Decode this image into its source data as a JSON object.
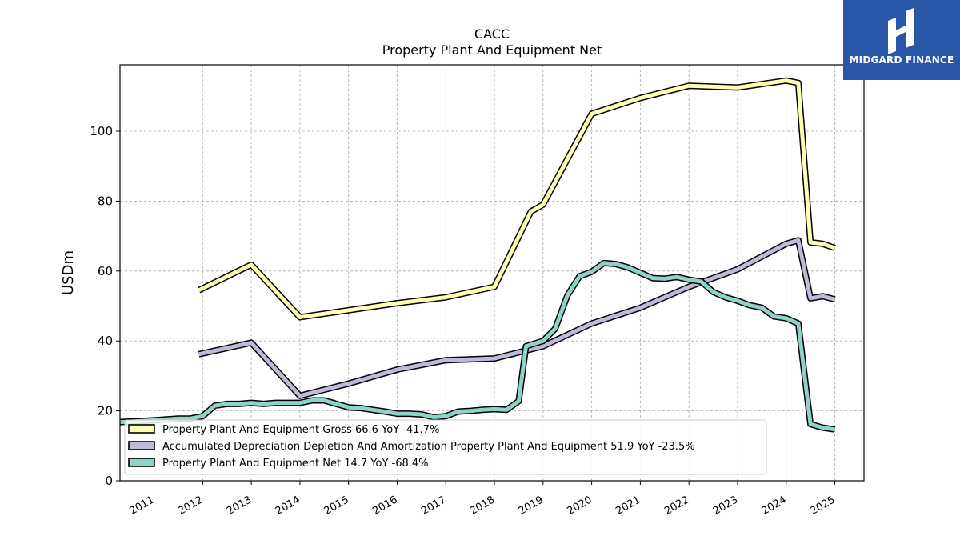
{
  "brand": {
    "logo_text": "MIDGARD FINANCE",
    "logo_color": "#2a56a8"
  },
  "chart_data": {
    "type": "line",
    "title": "CACC",
    "subtitle": "Property Plant And Equipment Net",
    "xlabel": "",
    "ylabel": "USDm",
    "xlim": [
      2010.3,
      2025.6
    ],
    "ylim": [
      0,
      119
    ],
    "x_ticks": [
      2011,
      2012,
      2013,
      2014,
      2015,
      2016,
      2017,
      2018,
      2019,
      2020,
      2021,
      2022,
      2023,
      2024,
      2025
    ],
    "y_ticks": [
      0,
      20,
      40,
      60,
      80,
      100
    ],
    "grid": true,
    "legend_position": "bottom-left",
    "series": [
      {
        "name": "Property Plant And Equipment Gross  66.6 YoY -41.7%",
        "color": "#ffffb3",
        "points": [
          [
            2011.92,
            54.5
          ],
          [
            2013.0,
            61.8
          ],
          [
            2014.0,
            46.8
          ],
          [
            2015.0,
            48.8
          ],
          [
            2016.0,
            50.8
          ],
          [
            2017.0,
            52.5
          ],
          [
            2018.0,
            55.5
          ],
          [
            2018.75,
            77.0
          ],
          [
            2019.0,
            79.0
          ],
          [
            2020.0,
            105.0
          ],
          [
            2021.0,
            109.5
          ],
          [
            2022.0,
            113.0
          ],
          [
            2023.0,
            112.5
          ],
          [
            2024.0,
            114.5
          ],
          [
            2024.25,
            113.8
          ],
          [
            2024.5,
            68.2
          ],
          [
            2024.75,
            67.8
          ],
          [
            2025.0,
            66.6
          ]
        ]
      },
      {
        "name": "Accumulated Depreciation Depletion And Amortization Property Plant And Equipment  51.9 YoY -23.5%",
        "color": "#bebada",
        "points": [
          [
            2011.92,
            36.2
          ],
          [
            2013.0,
            39.5
          ],
          [
            2014.0,
            24.3
          ],
          [
            2015.0,
            27.8
          ],
          [
            2016.0,
            31.8
          ],
          [
            2017.0,
            34.5
          ],
          [
            2018.0,
            35.0
          ],
          [
            2019.0,
            38.5
          ],
          [
            2020.0,
            45.0
          ],
          [
            2021.0,
            49.5
          ],
          [
            2022.0,
            55.5
          ],
          [
            2023.0,
            60.5
          ],
          [
            2024.0,
            67.8
          ],
          [
            2024.25,
            68.8
          ],
          [
            2024.5,
            52.2
          ],
          [
            2024.75,
            52.8
          ],
          [
            2025.0,
            51.9
          ]
        ]
      },
      {
        "name": "Property Plant And Equipment Net  14.7 YoY -68.4%",
        "color": "#8dd3c7",
        "points": [
          [
            2010.3,
            16.8
          ],
          [
            2011.0,
            17.3
          ],
          [
            2011.5,
            17.8
          ],
          [
            2011.75,
            17.8
          ],
          [
            2012.0,
            18.5
          ],
          [
            2012.25,
            21.5
          ],
          [
            2012.5,
            22.0
          ],
          [
            2012.75,
            22.0
          ],
          [
            2013.0,
            22.3
          ],
          [
            2013.25,
            22.0
          ],
          [
            2013.5,
            22.3
          ],
          [
            2013.75,
            22.3
          ],
          [
            2014.0,
            22.3
          ],
          [
            2014.25,
            23.0
          ],
          [
            2014.5,
            23.0
          ],
          [
            2014.75,
            22.0
          ],
          [
            2015.0,
            21.0
          ],
          [
            2015.25,
            20.8
          ],
          [
            2015.5,
            20.3
          ],
          [
            2015.75,
            19.8
          ],
          [
            2016.0,
            19.2
          ],
          [
            2016.25,
            19.2
          ],
          [
            2016.5,
            19.0
          ],
          [
            2016.75,
            18.2
          ],
          [
            2017.0,
            18.5
          ],
          [
            2017.25,
            19.8
          ],
          [
            2017.5,
            20.0
          ],
          [
            2017.75,
            20.3
          ],
          [
            2018.0,
            20.5
          ],
          [
            2018.25,
            20.3
          ],
          [
            2018.5,
            22.8
          ],
          [
            2018.65,
            38.5
          ],
          [
            2019.0,
            40.0
          ],
          [
            2019.25,
            43.5
          ],
          [
            2019.5,
            53.0
          ],
          [
            2019.75,
            58.5
          ],
          [
            2020.0,
            59.8
          ],
          [
            2020.25,
            62.3
          ],
          [
            2020.5,
            62.0
          ],
          [
            2020.75,
            61.0
          ],
          [
            2021.0,
            59.5
          ],
          [
            2021.25,
            58.0
          ],
          [
            2021.5,
            57.8
          ],
          [
            2021.75,
            58.3
          ],
          [
            2022.0,
            57.5
          ],
          [
            2022.25,
            57.0
          ],
          [
            2022.5,
            54.0
          ],
          [
            2022.75,
            52.5
          ],
          [
            2023.0,
            51.5
          ],
          [
            2023.25,
            50.2
          ],
          [
            2023.5,
            49.5
          ],
          [
            2023.75,
            47.0
          ],
          [
            2024.0,
            46.5
          ],
          [
            2024.25,
            45.0
          ],
          [
            2024.5,
            16.2
          ],
          [
            2024.75,
            15.2
          ],
          [
            2025.0,
            14.7
          ]
        ]
      }
    ]
  }
}
